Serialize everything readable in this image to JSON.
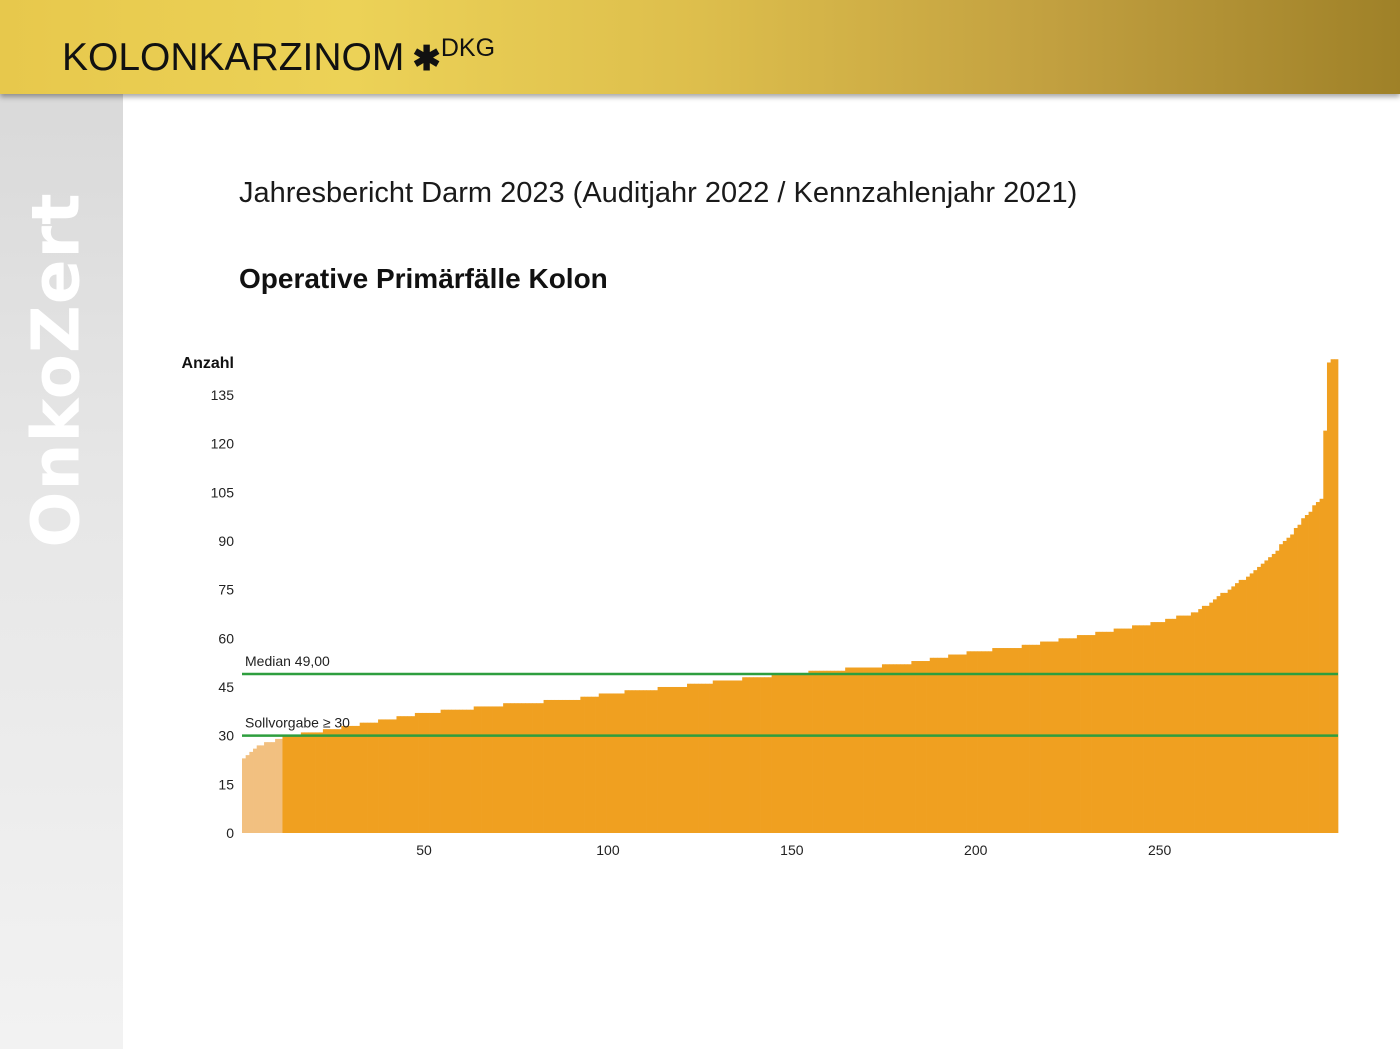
{
  "sidebar": {
    "brand_text": "OnkoZert"
  },
  "header": {
    "title": "KOLONKARZINOM",
    "star": "✱",
    "superscript": "DKG"
  },
  "report": {
    "title": "Jahresbericht Darm 2023 (Auditjahr 2022 / Kennzahlenjahr 2021)",
    "chart_heading": "Operative Primärfälle Kolon"
  },
  "colors": {
    "banner_start": "#e7c84c",
    "banner_end": "#9f8128",
    "bar": "#f0a020",
    "bar_below_target": "#f2c080",
    "reference_line": "#2e9e3e"
  },
  "chart_data": {
    "type": "bar",
    "ylabel": "Anzahl",
    "xlabel": "",
    "ylim": [
      0,
      147
    ],
    "xlim": [
      1,
      298
    ],
    "y_ticks": [
      0,
      15,
      30,
      45,
      60,
      75,
      90,
      105,
      120,
      135
    ],
    "x_ticks": [
      50,
      100,
      150,
      200,
      250
    ],
    "n_bars": 298,
    "sorted_ascending": true,
    "series": [
      {
        "profile": [
          [
            1,
            23
          ],
          [
            4,
            26
          ],
          [
            8,
            28
          ],
          [
            13,
            30
          ],
          [
            20,
            31
          ],
          [
            30,
            33
          ],
          [
            40,
            35
          ],
          [
            50,
            37
          ],
          [
            60,
            38
          ],
          [
            75,
            40
          ],
          [
            90,
            41
          ],
          [
            100,
            43
          ],
          [
            110,
            44
          ],
          [
            125,
            46
          ],
          [
            140,
            48
          ],
          [
            150,
            49
          ],
          [
            160,
            50
          ],
          [
            170,
            51
          ],
          [
            180,
            52
          ],
          [
            190,
            54
          ],
          [
            200,
            56
          ],
          [
            210,
            57
          ],
          [
            220,
            59
          ],
          [
            230,
            61
          ],
          [
            240,
            63
          ],
          [
            250,
            65
          ],
          [
            260,
            68
          ],
          [
            265,
            72
          ],
          [
            270,
            76
          ],
          [
            275,
            80
          ],
          [
            280,
            85
          ],
          [
            285,
            91
          ],
          [
            290,
            98
          ],
          [
            294,
            103
          ],
          [
            296,
            145
          ],
          [
            298,
            146
          ]
        ]
      }
    ],
    "reference_lines": [
      {
        "label": "Median 49,00",
        "value": 49
      },
      {
        "label": "Sollvorgabe ≥ 30",
        "value": 30
      }
    ],
    "below_target_color_note": false
  }
}
